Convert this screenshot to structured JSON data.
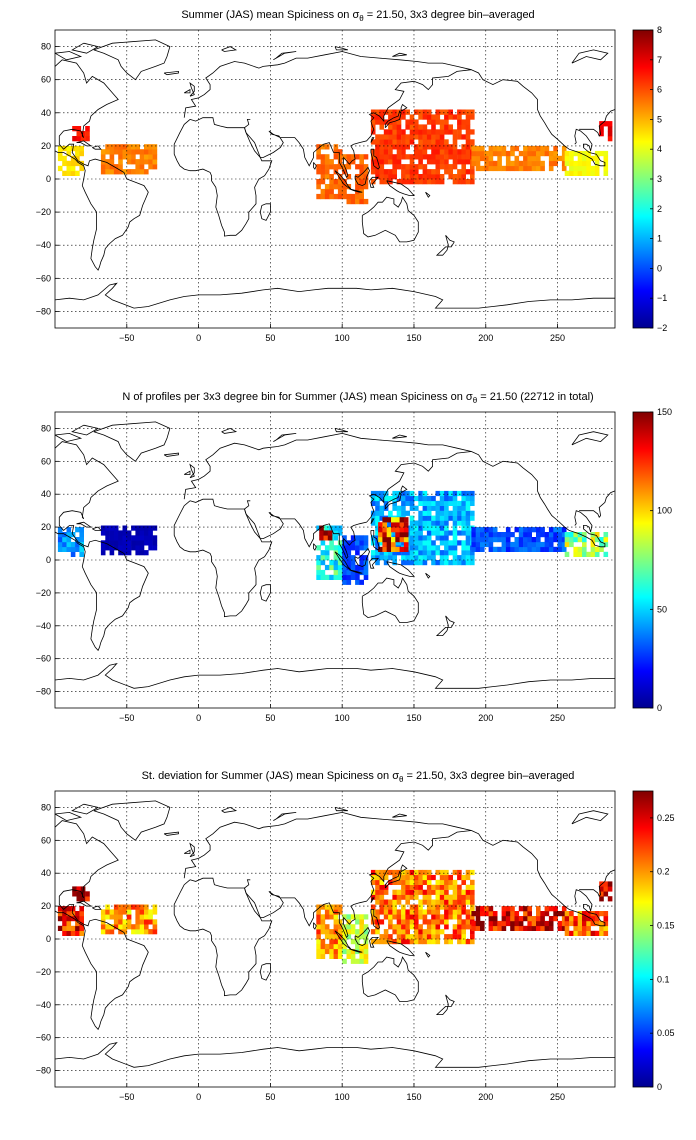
{
  "panels": [
    {
      "title_main": "Summer (JAS) mean Spiciness on ",
      "title_sigma": "σ",
      "title_sub": "θ",
      "title_rest": " = 21.50, 3x3 degree bin–averaged",
      "colorbar": {
        "min": -2,
        "max": 8,
        "ticks": [
          "8",
          "7",
          "6",
          "5",
          "4",
          "3",
          "2",
          "1",
          "0",
          "−1",
          "−2"
        ]
      }
    },
    {
      "title_main": "N of profiles per 3x3 degree bin for Summer (JAS) mean Spiciness on ",
      "title_sigma": "σ",
      "title_sub": "θ",
      "title_rest": " = 21.50 (22712 in total)",
      "colorbar": {
        "min": 0,
        "max": 150,
        "ticks": [
          "150",
          "100",
          "50",
          "0"
        ]
      }
    },
    {
      "title_main": "St. deviation for Summer (JAS) mean Spiciness on ",
      "title_sigma": "σ",
      "title_sub": "θ",
      "title_rest": " = 21.50, 3x3 degree bin–averaged",
      "colorbar": {
        "min": 0,
        "max": 0.275,
        "ticks": [
          "0.25",
          "0.2",
          "0.15",
          "0.1",
          "0.05",
          "0"
        ]
      }
    }
  ],
  "axes": {
    "x_ticks": [
      "−50",
      "0",
      "50",
      "100",
      "150",
      "200",
      "250"
    ],
    "y_ticks": [
      "80",
      "60",
      "40",
      "20",
      "0",
      "−20",
      "−40",
      "−60",
      "−80"
    ]
  },
  "chart_data": [
    {
      "type": "heatmap",
      "title": "Summer (JAS) mean Spiciness on σθ = 21.50, 3x3 degree bin–averaged",
      "xlim": [
        -100,
        290
      ],
      "ylim": [
        -90,
        90
      ],
      "colorbar_range": [
        -2,
        8
      ],
      "grid": true,
      "regions": [
        {
          "lon": [
            -98,
            -80
          ],
          "lat": [
            2,
            18
          ],
          "value": 4.5
        },
        {
          "lon": [
            -68,
            -30
          ],
          "lat": [
            3,
            20
          ],
          "value": 5.5
        },
        {
          "lon": [
            82,
            100
          ],
          "lat": [
            -12,
            20
          ],
          "value": 5.7
        },
        {
          "lon": [
            100,
            118
          ],
          "lat": [
            -15,
            15
          ],
          "value": 5.8
        },
        {
          "lon": [
            120,
            190
          ],
          "lat": [
            -3,
            40
          ],
          "value": 6.2
        },
        {
          "lon": [
            190,
            255
          ],
          "lat": [
            5,
            20
          ],
          "value": 5.5
        },
        {
          "lon": [
            255,
            283
          ],
          "lat": [
            2,
            16
          ],
          "value": 4.2
        },
        {
          "lon": [
            -88,
            -78
          ],
          "lat": [
            23,
            32
          ],
          "value": 6.7
        },
        {
          "lon": [
            279,
            286
          ],
          "lat": [
            23,
            33
          ],
          "value": 6.8
        }
      ]
    },
    {
      "type": "heatmap",
      "title": "N of profiles per 3x3 degree bin for Summer (JAS) mean Spiciness on σθ = 21.50 (22712 in total)",
      "xlim": [
        -100,
        290
      ],
      "ylim": [
        -90,
        90
      ],
      "colorbar_range": [
        0,
        150
      ],
      "grid": true,
      "regions": [
        {
          "lon": [
            -98,
            -80
          ],
          "lat": [
            2,
            18
          ],
          "value": 40
        },
        {
          "lon": [
            -68,
            -30
          ],
          "lat": [
            3,
            20
          ],
          "value": 8
        },
        {
          "lon": [
            82,
            100
          ],
          "lat": [
            -12,
            20
          ],
          "value": 60
        },
        {
          "lon": [
            84,
            92
          ],
          "lat": [
            12,
            20
          ],
          "value": 140
        },
        {
          "lon": [
            100,
            118
          ],
          "lat": [
            -15,
            15
          ],
          "value": 30
        },
        {
          "lon": [
            120,
            190
          ],
          "lat": [
            -3,
            40
          ],
          "value": 45
        },
        {
          "lon": [
            125,
            145
          ],
          "lat": [
            5,
            25
          ],
          "value": 130
        },
        {
          "lon": [
            190,
            255
          ],
          "lat": [
            5,
            20
          ],
          "value": 30
        },
        {
          "lon": [
            255,
            283
          ],
          "lat": [
            2,
            16
          ],
          "value": 80
        }
      ]
    },
    {
      "type": "heatmap",
      "title": "St. deviation for Summer (JAS) mean Spiciness on σθ = 21.50, 3x3 degree bin–averaged",
      "xlim": [
        -100,
        290
      ],
      "ylim": [
        -90,
        90
      ],
      "colorbar_range": [
        0,
        0.275
      ],
      "grid": true,
      "regions": [
        {
          "lon": [
            -98,
            -80
          ],
          "lat": [
            2,
            18
          ],
          "value": 0.24
        },
        {
          "lon": [
            -68,
            -30
          ],
          "lat": [
            3,
            20
          ],
          "value": 0.2
        },
        {
          "lon": [
            82,
            100
          ],
          "lat": [
            -12,
            20
          ],
          "value": 0.2
        },
        {
          "lon": [
            100,
            118
          ],
          "lat": [
            -15,
            15
          ],
          "value": 0.16
        },
        {
          "lon": [
            120,
            190
          ],
          "lat": [
            -3,
            40
          ],
          "value": 0.21
        },
        {
          "lon": [
            190,
            255
          ],
          "lat": [
            5,
            20
          ],
          "value": 0.25
        },
        {
          "lon": [
            255,
            283
          ],
          "lat": [
            2,
            16
          ],
          "value": 0.22
        },
        {
          "lon": [
            -88,
            -78
          ],
          "lat": [
            23,
            32
          ],
          "value": 0.26
        },
        {
          "lon": [
            279,
            286
          ],
          "lat": [
            23,
            33
          ],
          "value": 0.25
        }
      ]
    }
  ]
}
